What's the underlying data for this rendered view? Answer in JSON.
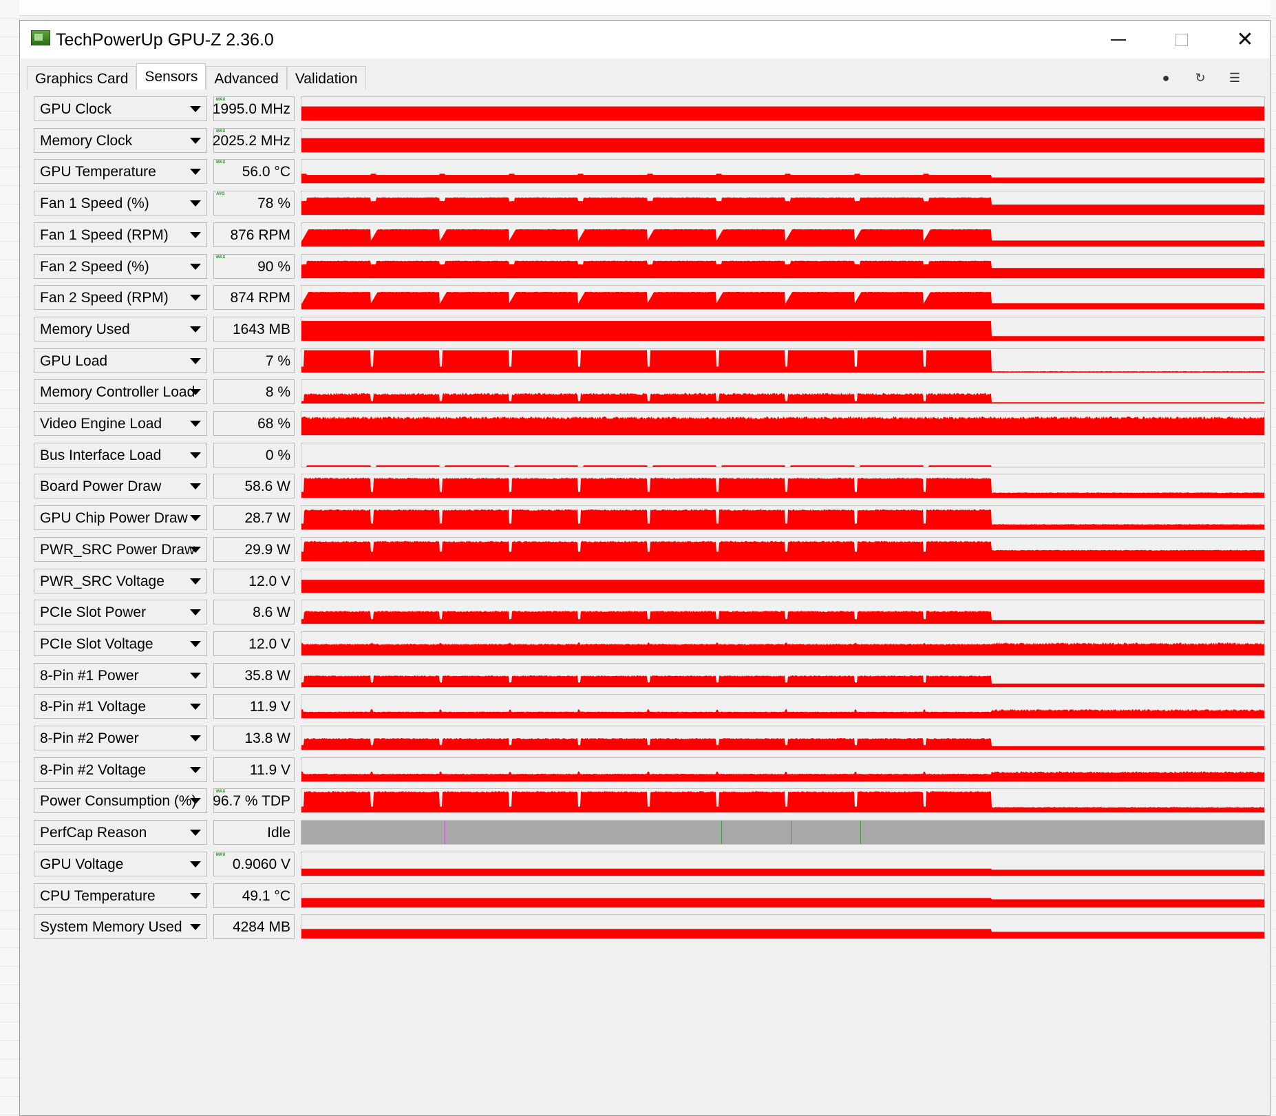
{
  "window": {
    "title": "TechPowerUp GPU-Z 2.36.0",
    "controls": {
      "minimize": "minimize",
      "maximize": "maximize",
      "close": "✕"
    }
  },
  "tabs": [
    {
      "label": "Graphics Card",
      "active": false
    },
    {
      "label": "Sensors",
      "active": true
    },
    {
      "label": "Advanced",
      "active": false
    },
    {
      "label": "Validation",
      "active": false
    }
  ],
  "toolbar": {
    "icons": [
      "camera-icon",
      "refresh-icon",
      "menu-icon"
    ]
  },
  "graph_color": "#ff0000",
  "perfcap_color": "#a8a8a8",
  "sensors": [
    {
      "name": "GPU Clock",
      "value": "1995.0 MHz",
      "mode": "MAX",
      "profile": "flat",
      "level": 0.6
    },
    {
      "name": "Memory Clock",
      "value": "2025.2 MHz",
      "mode": "MAX",
      "profile": "flat",
      "level": 0.6
    },
    {
      "name": "GPU Temperature",
      "value": "56.0 °C",
      "mode": "MAX",
      "profile": "low_temp",
      "level": 0.35
    },
    {
      "name": "Fan 1 Speed (%)",
      "value": "78 %",
      "mode": "AVG",
      "profile": "fan",
      "level": 0.72
    },
    {
      "name": "Fan 1 Speed (RPM)",
      "value": "876 RPM",
      "mode": "",
      "profile": "fan_rpm",
      "level": 0.72
    },
    {
      "name": "Fan 2 Speed (%)",
      "value": "90 %",
      "mode": "MAX",
      "profile": "fan",
      "level": 0.72
    },
    {
      "name": "Fan 2 Speed (RPM)",
      "value": "874 RPM",
      "mode": "",
      "profile": "fan_rpm",
      "level": 0.72
    },
    {
      "name": "Memory Used",
      "value": "1643 MB",
      "mode": "",
      "profile": "memused",
      "level": 0.85
    },
    {
      "name": "GPU Load",
      "value": "7 %",
      "mode": "",
      "profile": "load",
      "level": 0.95
    },
    {
      "name": "Memory Controller Load",
      "value": "8 %",
      "mode": "",
      "profile": "mcload",
      "level": 0.35
    },
    {
      "name": "Video Engine Load",
      "value": "68 %",
      "mode": "",
      "profile": "noisy_full",
      "level": 0.68
    },
    {
      "name": "Bus Interface Load",
      "value": "0 %",
      "mode": "",
      "profile": "bus",
      "level": 0.05
    },
    {
      "name": "Board Power Draw",
      "value": "58.6 W",
      "mode": "",
      "profile": "power",
      "level": 0.8
    },
    {
      "name": "GPU Chip Power Draw",
      "value": "28.7 W",
      "mode": "",
      "profile": "power",
      "level": 0.8
    },
    {
      "name": "PWR_SRC Power Draw",
      "value": "29.9 W",
      "mode": "",
      "profile": "power_src",
      "level": 0.8
    },
    {
      "name": "PWR_SRC Voltage",
      "value": "12.0 V",
      "mode": "",
      "profile": "flat",
      "level": 0.55
    },
    {
      "name": "PCIe Slot Power",
      "value": "8.6 W",
      "mode": "",
      "profile": "power_low",
      "level": 0.5
    },
    {
      "name": "PCIe Slot Voltage",
      "value": "12.0 V",
      "mode": "",
      "profile": "voltage",
      "level": 0.45
    },
    {
      "name": "8-Pin #1 Power",
      "value": "35.8 W",
      "mode": "",
      "profile": "power_low",
      "level": 0.45
    },
    {
      "name": "8-Pin #1 Voltage",
      "value": "11.9 V",
      "mode": "",
      "profile": "low_voltage",
      "level": 0.25
    },
    {
      "name": "8-Pin #2 Power",
      "value": "13.8 W",
      "mode": "",
      "profile": "power_low",
      "level": 0.45
    },
    {
      "name": "8-Pin #2 Voltage",
      "value": "11.9 V",
      "mode": "",
      "profile": "low_voltage",
      "level": 0.3
    },
    {
      "name": "Power Consumption (%)",
      "value": "96.7 % TDP",
      "mode": "MAX",
      "profile": "power",
      "level": 0.85
    },
    {
      "name": "PerfCap Reason",
      "value": "Idle",
      "mode": "",
      "profile": "perfcap",
      "level": 1.0
    },
    {
      "name": "GPU Voltage",
      "value": "0.9060 V",
      "mode": "MAX",
      "profile": "low_flat",
      "level": 0.3
    },
    {
      "name": "CPU Temperature",
      "value": "49.1 °C",
      "mode": "",
      "profile": "low_flat",
      "level": 0.4
    },
    {
      "name": "System Memory Used",
      "value": "4284 MB",
      "mode": "",
      "profile": "sysmem",
      "level": 0.4
    }
  ]
}
